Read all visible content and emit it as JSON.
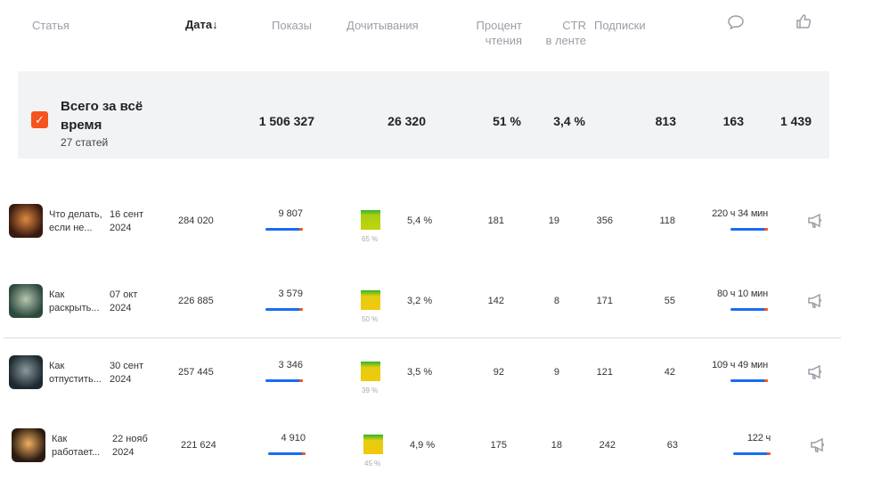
{
  "header": {
    "article": "Статья",
    "date": "Дата",
    "sort_arrow": "↓",
    "views": "Показы",
    "readthroughs": "Дочитывания",
    "read_pct": [
      "Процент",
      "чтения"
    ],
    "ctr": [
      "CTR",
      "в ленте"
    ],
    "subs": "Подписки",
    "comments_icon": "comment-icon",
    "likes_icon": "like-icon"
  },
  "total": {
    "title_line1": "Всего за всё",
    "title_line2": "время",
    "subtitle": "27 статей",
    "views": "1 506 327",
    "readthroughs": "26 320",
    "read_pct": "51 %",
    "ctr": "3,4 %",
    "subs": "813",
    "comments": "163",
    "likes": "1 439"
  },
  "rows": [
    {
      "title": [
        "Что делать,",
        "если не..."
      ],
      "date": [
        "16 сент",
        "2024"
      ],
      "impressions": "284 020",
      "views": "9 807",
      "read_pct": "65 %",
      "ctr": "5,4 %",
      "c1": "181",
      "c2": "19",
      "c3": "356",
      "c4": "118",
      "time": "220 ч 34 мин",
      "thumb": [
        "#3a1a10",
        "#e08a40"
      ],
      "box": "g"
    },
    {
      "title": [
        "Как",
        "раскрыть..."
      ],
      "date": [
        "07 окт",
        "2024"
      ],
      "impressions": "226 885",
      "views": "3 579",
      "read_pct": "50 %",
      "ctr": "3,2 %",
      "c1": "142",
      "c2": "8",
      "c3": "171",
      "c4": "55",
      "time": "80 ч 10 мин",
      "thumb": [
        "#2e4a40",
        "#b8c8b0"
      ],
      "box": "y"
    },
    {
      "title": [
        "Как",
        "отпустить..."
      ],
      "date": [
        "30 сент",
        "2024"
      ],
      "impressions": "257 445",
      "views": "3 346",
      "read_pct": "39 %",
      "ctr": "3,5 %",
      "c1": "92",
      "c2": "9",
      "c3": "121",
      "c4": "42",
      "time": "109 ч 49 мин",
      "thumb": [
        "#1e2a30",
        "#8a9aa0"
      ],
      "box": "y"
    },
    {
      "title": [
        "Как",
        "работает..."
      ],
      "date": [
        "22 нояб",
        "2024"
      ],
      "impressions": "221 624",
      "views": "4 910",
      "read_pct": "45 %",
      "ctr": "4,9 %",
      "c1": "175",
      "c2": "18",
      "c3": "242",
      "c4": "63",
      "time": "122 ч",
      "thumb": [
        "#2a1a10",
        "#f0b060"
      ],
      "box": "y"
    }
  ]
}
